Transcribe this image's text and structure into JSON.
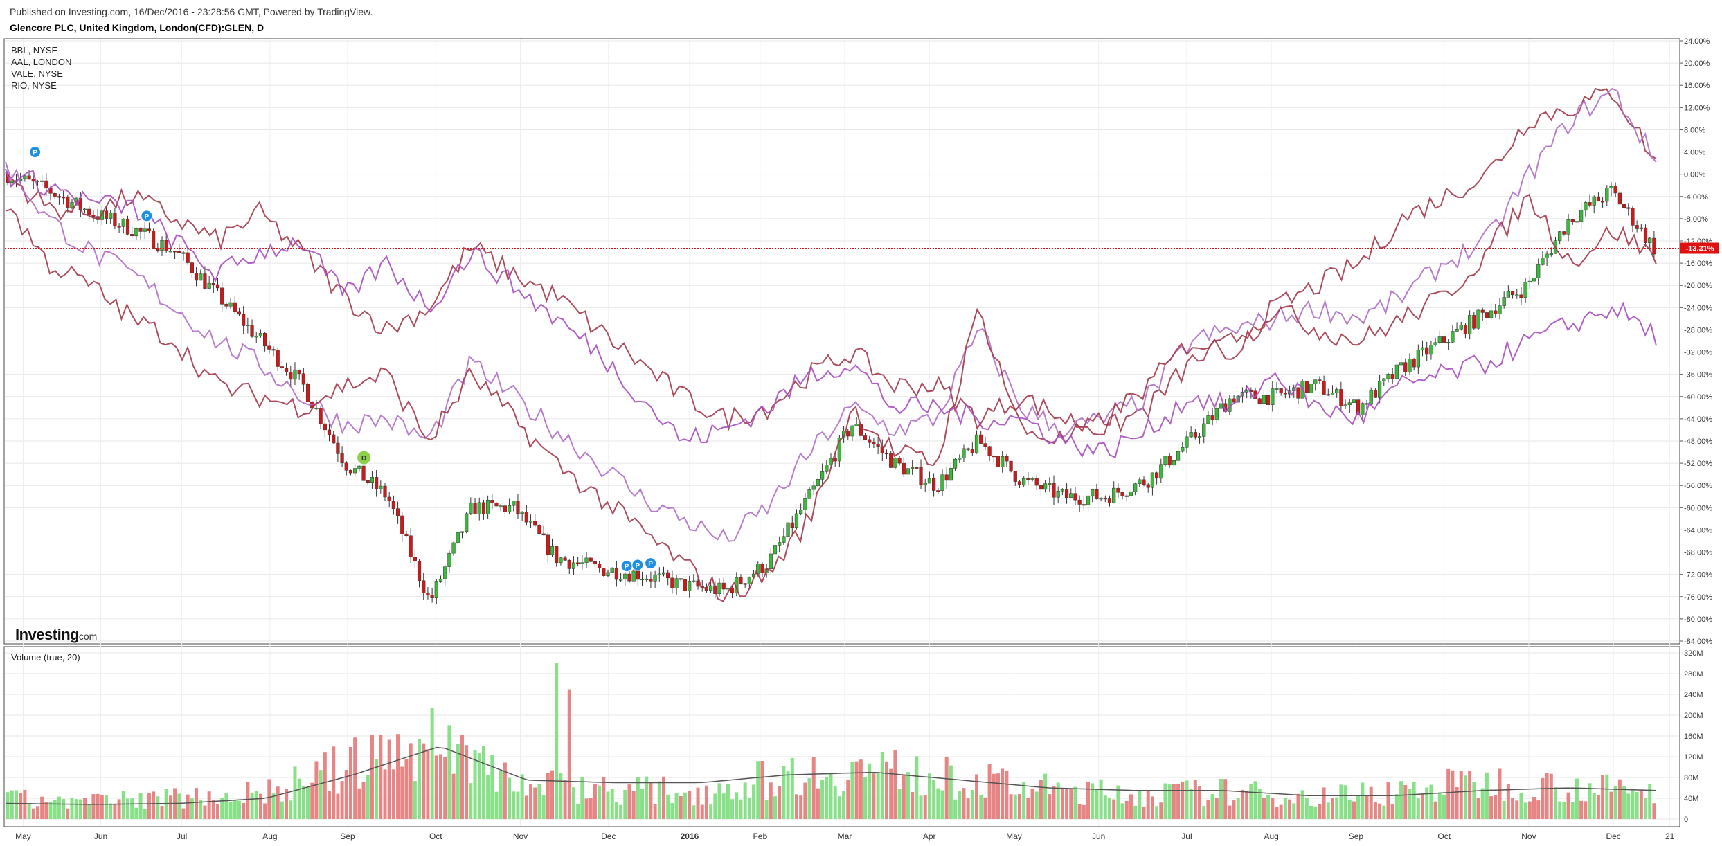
{
  "header": {
    "published": "Published on Investing.com, 16/Dec/2016 - 23:28:56 GMT, Powered by TradingView.",
    "title": "Glencore PLC, United Kingdom, London(CFD):GLEN, D"
  },
  "logo": {
    "brand": "Investing",
    "suffix": ".com"
  },
  "colors": {
    "up": "#3cb93c",
    "down": "#cc1a1a",
    "vol_up": "#88e088",
    "vol_down": "#e78484",
    "compare_red": "#a3384a",
    "compare_purple": "#a94fc0",
    "last_price": "#e01010",
    "ma": "#555555"
  },
  "chart_data": [
    {
      "type": "line",
      "title": "Glencore PLC, United Kingdom, London(CFD):GLEN, D",
      "comparison_legend": [
        "BBL, NYSE",
        "AAL, LONDON",
        "VALE, NYSE",
        "RIO, NYSE"
      ],
      "x": [
        "2015-05-01",
        "2015-05-15",
        "2015-06-01",
        "2015-06-15",
        "2015-07-01",
        "2015-07-15",
        "2015-08-01",
        "2015-08-15",
        "2015-09-01",
        "2015-09-15",
        "2015-10-01",
        "2015-10-15",
        "2015-11-01",
        "2015-11-15",
        "2015-12-01",
        "2015-12-15",
        "2016-01-01",
        "2016-01-15",
        "2016-02-01",
        "2016-02-15",
        "2016-03-01",
        "2016-03-15",
        "2016-04-01",
        "2016-04-15",
        "2016-05-01",
        "2016-05-15",
        "2016-06-01",
        "2016-06-15",
        "2016-07-01",
        "2016-07-15",
        "2016-08-01",
        "2016-08-15",
        "2016-09-01",
        "2016-09-15",
        "2016-10-01",
        "2016-10-15",
        "2016-11-01",
        "2016-11-15",
        "2016-12-01",
        "2016-12-15"
      ],
      "series": [
        {
          "name": "GLEN",
          "values": [
            0,
            -3,
            -7,
            -10,
            -14,
            -22,
            -30,
            -38,
            -52,
            -58,
            -77,
            -60,
            -60,
            -69,
            -71,
            -72,
            -74,
            -75,
            -70,
            -58,
            -45,
            -52,
            -56,
            -48,
            -55,
            -58,
            -58,
            -55,
            -48,
            -40,
            -40,
            -38,
            -42,
            -35,
            -30,
            -25,
            -20,
            -8,
            -3,
            -13.31
          ]
        },
        {
          "name": "BBL, NYSE",
          "values": [
            0,
            -6,
            -7,
            -4,
            -8,
            -12,
            -7,
            -14,
            -22,
            -28,
            -24,
            -13,
            -18,
            -22,
            -28,
            -34,
            -40,
            -44,
            -42,
            -36,
            -32,
            -38,
            -38,
            -44,
            -40,
            -44,
            -46,
            -42,
            -34,
            -30,
            -24,
            -20,
            -16,
            -8,
            -4,
            0,
            10,
            12,
            15,
            2
          ]
        },
        {
          "name": "AAL, LONDON",
          "values": [
            2,
            -8,
            -14,
            -18,
            -24,
            -30,
            -34,
            -40,
            -45,
            -44,
            -48,
            -34,
            -40,
            -46,
            -52,
            -58,
            -62,
            -66,
            -60,
            -50,
            -42,
            -46,
            -44,
            -28,
            -42,
            -46,
            -44,
            -40,
            -30,
            -28,
            -26,
            -24,
            -26,
            -22,
            -16,
            -12,
            0,
            10,
            15,
            2
          ]
        },
        {
          "name": "VALE, NYSE",
          "values": [
            -5,
            -16,
            -20,
            -26,
            -30,
            -38,
            -40,
            -42,
            -38,
            -36,
            -48,
            -36,
            -44,
            -52,
            -58,
            -64,
            -70,
            -76,
            -72,
            -62,
            -42,
            -50,
            -52,
            -24,
            -46,
            -48,
            -44,
            -38,
            -30,
            -32,
            -24,
            -28,
            -30,
            -26,
            -22,
            -14,
            -4,
            -16,
            -10,
            -15
          ]
        },
        {
          "name": "RIO, NYSE",
          "values": [
            0,
            -2,
            -5,
            -6,
            -12,
            -18,
            -14,
            -12,
            -22,
            -16,
            -24,
            -14,
            -20,
            -26,
            -32,
            -40,
            -48,
            -46,
            -42,
            -36,
            -34,
            -42,
            -42,
            -44,
            -44,
            -48,
            -50,
            -46,
            -40,
            -42,
            -36,
            -42,
            -44,
            -38,
            -36,
            -34,
            -30,
            -27,
            -24,
            -29
          ]
        }
      ],
      "last_value_label": "-13.31%",
      "ylim": [
        -84,
        24
      ],
      "yticks": [
        "24.00%",
        "20.00%",
        "16.00%",
        "12.00%",
        "8.00%",
        "4.00%",
        "0.00%",
        "-4.00%",
        "-8.00%",
        "-12.00%",
        "-16.00%",
        "-20.00%",
        "-24.00%",
        "-28.00%",
        "-32.00%",
        "-36.00%",
        "-40.00%",
        "-44.00%",
        "-48.00%",
        "-52.00%",
        "-56.00%",
        "-60.00%",
        "-64.00%",
        "-68.00%",
        "-72.00%",
        "-76.00%",
        "-80.00%",
        "-84.00%"
      ],
      "xticks": [
        "May",
        "Jun",
        "Jul",
        "Aug",
        "Sep",
        "Oct",
        "Nov",
        "Dec",
        "2016",
        "Feb",
        "Mar",
        "Apr",
        "May",
        "Jun",
        "Jul",
        "Aug",
        "Sep",
        "Oct",
        "Nov",
        "Dec",
        "21"
      ],
      "event_markers": [
        "P",
        "P",
        "D",
        "P",
        "P",
        "P"
      ],
      "grid": true
    },
    {
      "type": "bar",
      "title": "Volume (true, 20)",
      "yticks": [
        "320M",
        "280M",
        "240M",
        "200M",
        "160M",
        "120M",
        "80M",
        "40M",
        "0"
      ],
      "ylim": [
        0,
        320
      ],
      "monthly_volume_M": [
        40,
        35,
        45,
        55,
        110,
        160,
        70,
        60,
        55,
        90,
        100,
        80,
        60,
        50,
        55,
        45,
        55,
        75,
        65,
        55
      ],
      "peak_volume_M": 300,
      "moving_average_M": [
        30,
        28,
        30,
        40,
        85,
        140,
        75,
        70,
        70,
        85,
        90,
        75,
        60,
        55,
        55,
        45,
        45,
        55,
        60,
        55
      ],
      "grid": true
    }
  ]
}
